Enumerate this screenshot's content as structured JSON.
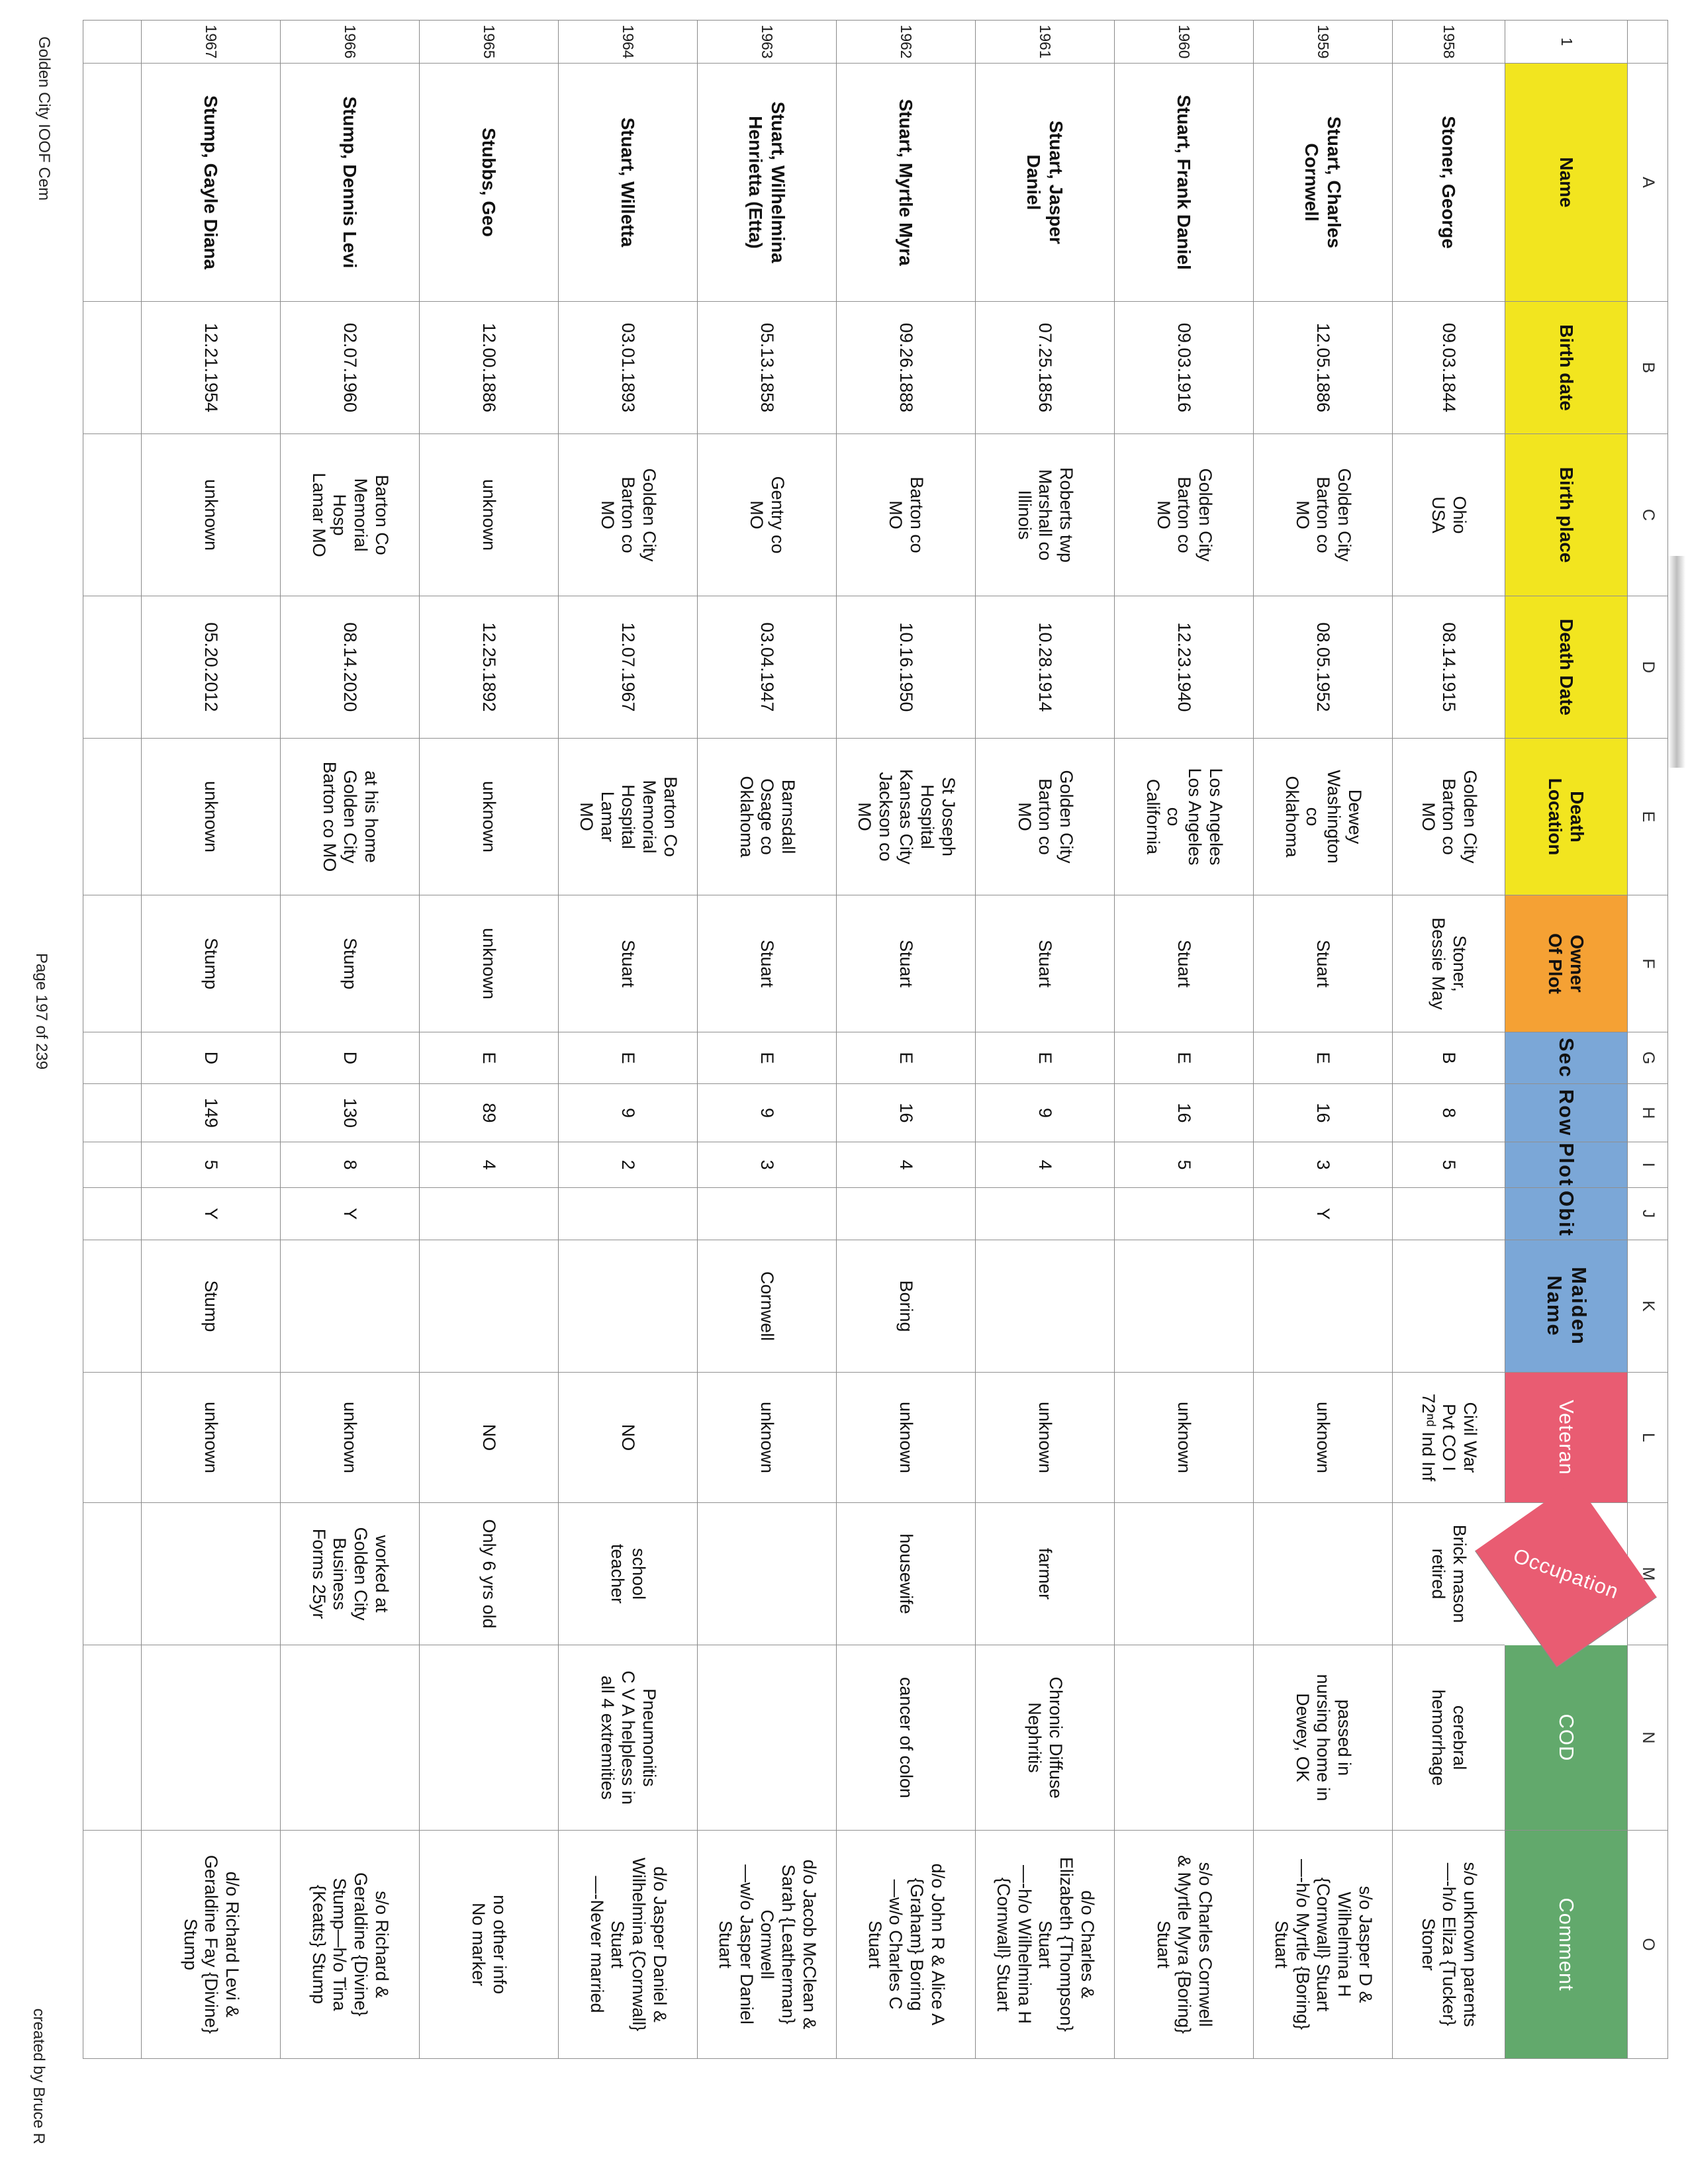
{
  "page": {
    "footer_left": "Golden City IOOF Cem",
    "footer_center": "Page 197 of 239",
    "footer_right": "created by Bruce R"
  },
  "colors": {
    "yellow": "#F2E51F",
    "orange": "#F5A134",
    "blue": "#7BA7D7",
    "red": "#E95C72",
    "green": "#62A96C",
    "grid_line": "#8a8a8a",
    "header_dark_text": "#111111",
    "header_light_text": "#ffffff"
  },
  "spreadsheet": {
    "corner_label": "",
    "column_letters": [
      "A",
      "B",
      "C",
      "D",
      "E",
      "F",
      "G",
      "H",
      "I",
      "J",
      "K",
      "L",
      "M",
      "N",
      "O"
    ],
    "header_row_number": "1",
    "columns": [
      {
        "label": "Name",
        "color": "#F2E51F",
        "text": "dark",
        "style": "plain"
      },
      {
        "label": "Birth date",
        "color": "#F2E51F",
        "text": "dark",
        "style": "plain"
      },
      {
        "label": "Birth place",
        "color": "#F2E51F",
        "text": "dark",
        "style": "plain"
      },
      {
        "label": "Death Date",
        "color": "#F2E51F",
        "text": "dark",
        "style": "plain"
      },
      {
        "label": "Death\nLocation",
        "color": "#F2E51F",
        "text": "dark",
        "style": "plain"
      },
      {
        "label": "Owner\nOf Plot",
        "color": "#F5A134",
        "text": "dark",
        "style": "plain"
      },
      {
        "label": "Sec",
        "color": "#7BA7D7",
        "text": "dark",
        "style": "bluefont"
      },
      {
        "label": "Row",
        "color": "#7BA7D7",
        "text": "dark",
        "style": "bluefont"
      },
      {
        "label": "Plot",
        "color": "#7BA7D7",
        "text": "dark",
        "style": "bluefont"
      },
      {
        "label": "Obit",
        "color": "#7BA7D7",
        "text": "dark",
        "style": "bluefont"
      },
      {
        "label": "Maiden\nName",
        "color": "#7BA7D7",
        "text": "dark",
        "style": "bluefont"
      },
      {
        "label": "Veteran",
        "color": "#E95C72",
        "text": "light",
        "style": "whitefont"
      },
      {
        "label": "Occupation",
        "color": "#E95C72",
        "text": "light",
        "style": "whitefont diagonal"
      },
      {
        "label": "COD",
        "color": "#62A96C",
        "text": "light",
        "style": "whitefont"
      },
      {
        "label": "Comment",
        "color": "#62A96C",
        "text": "light",
        "style": "whitefont"
      }
    ],
    "rows": [
      {
        "number": "1958",
        "cells": [
          "Stoner, George",
          "09.03.1844",
          "Ohio\nUSA",
          "08.14.1915",
          "Golden City\nBarton co\nMO",
          "Stoner,\nBessie May",
          "B",
          "8",
          "5",
          "",
          "",
          "Civil War\nPvt CO I\n72ⁿᵈ Ind Inf",
          "Brick mason\nretired",
          "cerebral\nhemorrhage",
          "s/o unknown parents\n—-h/o Eliza {Tucker}\nStoner"
        ]
      },
      {
        "number": "1959",
        "cells": [
          "Stuart, Charles\nCornwell",
          "12.05.1886",
          "Golden City\nBarton co\nMO",
          "08.05.1952",
          "Dewey\nWashington\nco\nOklahoma",
          "Stuart",
          "E",
          "16",
          "3",
          "Y",
          "",
          "unknown",
          "",
          "passed in\nnursing home in\nDewey, OK",
          "s/o Jasper D &\nWilhelmina H\n{Cornwall} Stuart\n—-h/o Myrtle {Boring}\nStuart"
        ]
      },
      {
        "number": "1960",
        "cells": [
          "Stuart, Frank Daniel",
          "09.03.1916",
          "Golden City\nBarton co\nMO",
          "12.23.1940",
          "Los Angeles\nLos Angeles\nco\nCalifornia",
          "Stuart",
          "E",
          "16",
          "5",
          "",
          "",
          "unknown",
          "",
          "",
          "s/o Charles Cornwell\n& Myrtle Myra {Boring}\nStuart"
        ]
      },
      {
        "number": "1961",
        "cells": [
          "Stuart, Jasper\nDaniel",
          "07.25.1856",
          "Roberts twp\nMarshall co\nIllinois",
          "10.28.1914",
          "Golden City\nBarton co\nMO",
          "Stuart",
          "E",
          "9",
          "4",
          "",
          "",
          "unknown",
          "farmer",
          "Chronic Diffuse\nNephritis",
          "d/o Charles &\nElizabeth {Thompson}\nStuart\n—-h/o Wilhelmina H\n{Cornwall} Stuart"
        ]
      },
      {
        "number": "1962",
        "cells": [
          "Stuart, Myrtle Myra",
          "09.26.1888",
          "Barton co\nMO",
          "10.16.1950",
          "St Joseph\nHospital\nKansas City\nJackson co\nMO",
          "Stuart",
          "E",
          "16",
          "4",
          "",
          "Boring",
          "unknown",
          "housewife",
          "cancer of colon",
          "d/o John R & Alice A\n{Graham} Boring\n—w/o Charles C\nStuart"
        ]
      },
      {
        "number": "1963",
        "cells": [
          "Stuart, Wilhelmina\nHenrietta (Etta)",
          "05.13.1858",
          "Gentry co\nMO",
          "03.04.1947",
          "Barnsdall\nOsage co\nOklahoma",
          "Stuart",
          "E",
          "9",
          "3",
          "",
          "Cornwell",
          "unknown",
          "",
          "",
          "d/o Jacob McClean &\nSarah {Leatherman}\nCornwell\n—w/o Jasper Daniel\nStuart"
        ]
      },
      {
        "number": "1964",
        "cells": [
          "Stuart, Willetta",
          "03.01.1893",
          "Golden City\nBarton co\nMO",
          "12.07.1967",
          "Barton Co\nMemorial\nHospital\nLamar\nMO",
          "Stuart",
          "E",
          "9",
          "2",
          "",
          "",
          "NO",
          "school\nteacher",
          "Pneumonitis\nC V A helpless in\nall 4 extremities",
          "d/o Jasper Daniel &\nWilhelmina {Cornwall}\nStuart\n—-Never married"
        ]
      },
      {
        "number": "1965",
        "cells": [
          "Stubbs, Geo",
          "12.00.1886",
          "unknown",
          "12.25.1892",
          "unknown",
          "unknown",
          "E",
          "89",
          "4",
          "",
          "",
          "NO",
          "Only 6 yrs old",
          "",
          "no other info\nNo marker"
        ]
      },
      {
        "number": "1966",
        "cells": [
          "Stump, Dennis Levi",
          "02.07.1960",
          "Barton Co\nMemorial\nHosp\nLamar  MO",
          "08.14.2020",
          "at his home\nGolden City\nBarton co  MO",
          "Stump",
          "D",
          "130",
          "8",
          "Y",
          "",
          "unknown",
          "worked at\nGolden City\nBusiness\nForms 25yr",
          "",
          "s/o Richard &\nGeraldine {Divine}\nStump—h/o Tina\n{Keatts} Stump"
        ]
      },
      {
        "number": "1967",
        "cells": [
          "Stump, Gayle Diana",
          "12.21.1954",
          "unknown",
          "05.20.2012",
          "unknown",
          "Stump",
          "D",
          "149",
          "5",
          "Y",
          "Stump",
          "unknown",
          "",
          "",
          "d/o Richard Levi &\nGeraldine Fay {Divine}\nStump"
        ]
      }
    ]
  }
}
